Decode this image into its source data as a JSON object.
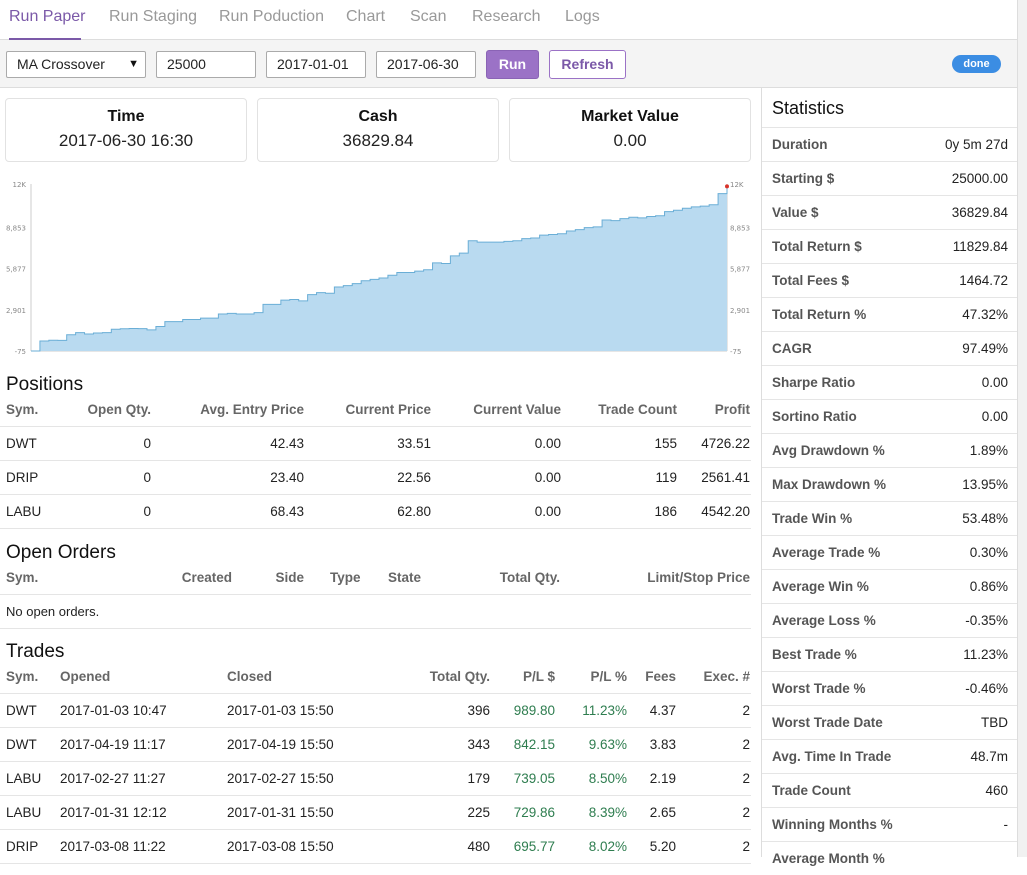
{
  "tabs": [
    "Run Paper",
    "Run Staging",
    "Run Poduction",
    "Chart",
    "Scan",
    "Research",
    "Logs"
  ],
  "toolbar": {
    "strategy": "MA Crossover",
    "capital": "25000",
    "start_date": "2017-01-01",
    "end_date": "2017-06-30",
    "run_label": "Run",
    "refresh_label": "Refresh",
    "status": "done"
  },
  "cards": [
    {
      "label": "Time",
      "value": "2017-06-30 16:30"
    },
    {
      "label": "Cash",
      "value": "36829.84"
    },
    {
      "label": "Market Value",
      "value": "0.00"
    }
  ],
  "chart_data": {
    "type": "area",
    "title": "",
    "y_ticks": [
      "12K",
      "8,853",
      "5,877",
      "2,901",
      "-75"
    ],
    "ylim": [
      -75,
      12000
    ],
    "color": "#b9daf0",
    "line_color": "#6aaed6",
    "values": [
      -75,
      650,
      700,
      690,
      1100,
      1250,
      1150,
      1230,
      1250,
      1500,
      1530,
      1550,
      1540,
      1450,
      1700,
      2050,
      2050,
      2200,
      2200,
      2300,
      2300,
      2600,
      2650,
      2600,
      2600,
      2700,
      3300,
      3300,
      3600,
      3650,
      3550,
      4000,
      4150,
      4100,
      4550,
      4650,
      4800,
      5000,
      5100,
      5200,
      5400,
      5600,
      5600,
      5700,
      5800,
      6300,
      6250,
      6800,
      7000,
      7900,
      7800,
      7800,
      7800,
      7850,
      7900,
      8050,
      8100,
      8300,
      8350,
      8400,
      8600,
      8700,
      8850,
      8900,
      9400,
      9350,
      9500,
      9600,
      9550,
      9650,
      9700,
      10000,
      10100,
      10250,
      10350,
      10400,
      10500,
      11300,
      11829
    ]
  },
  "positions": {
    "title": "Positions",
    "headers": [
      "Sym.",
      "Open Qty.",
      "Avg. Entry Price",
      "Current Price",
      "Current Value",
      "Trade Count",
      "Profit"
    ],
    "rows": [
      [
        "DWT",
        "0",
        "42.43",
        "33.51",
        "0.00",
        "155",
        "4726.22"
      ],
      [
        "DRIP",
        "0",
        "23.40",
        "22.56",
        "0.00",
        "119",
        "2561.41"
      ],
      [
        "LABU",
        "0",
        "68.43",
        "62.80",
        "0.00",
        "186",
        "4542.20"
      ]
    ]
  },
  "orders": {
    "title": "Open Orders",
    "headers": [
      "Sym.",
      "Created",
      "Side",
      "Type",
      "State",
      "Total Qty.",
      "Limit/Stop Price"
    ],
    "empty": "No open orders."
  },
  "trades": {
    "title": "Trades",
    "headers": [
      "Sym.",
      "Opened",
      "Closed",
      "Total Qty.",
      "P/L $",
      "P/L %",
      "Fees",
      "Exec. #"
    ],
    "rows": [
      [
        "DWT",
        "2017-01-03 10:47",
        "2017-01-03 15:50",
        "396",
        "989.80",
        "11.23%",
        "4.37",
        "2"
      ],
      [
        "DWT",
        "2017-04-19 11:17",
        "2017-04-19 15:50",
        "343",
        "842.15",
        "9.63%",
        "3.83",
        "2"
      ],
      [
        "LABU",
        "2017-02-27 11:27",
        "2017-02-27 15:50",
        "179",
        "739.05",
        "8.50%",
        "2.19",
        "2"
      ],
      [
        "LABU",
        "2017-01-31 12:12",
        "2017-01-31 15:50",
        "225",
        "729.86",
        "8.39%",
        "2.65",
        "2"
      ],
      [
        "DRIP",
        "2017-03-08 11:22",
        "2017-03-08 15:50",
        "480",
        "695.77",
        "8.02%",
        "5.20",
        "2"
      ]
    ]
  },
  "statistics": {
    "title": "Statistics",
    "rows": [
      {
        "k": "Duration",
        "v": "0y 5m 27d",
        "c": ""
      },
      {
        "k": "Starting $",
        "v": "25000.00",
        "c": ""
      },
      {
        "k": "Value $",
        "v": "36829.84",
        "c": ""
      },
      {
        "k": "Total Return $",
        "v": "11829.84",
        "c": "pos"
      },
      {
        "k": "Total Fees $",
        "v": "1464.72",
        "c": ""
      },
      {
        "k": "Total Return %",
        "v": "47.32%",
        "c": "pos"
      },
      {
        "k": "CAGR",
        "v": "97.49%",
        "c": ""
      },
      {
        "k": "Sharpe Ratio",
        "v": "0.00",
        "c": ""
      },
      {
        "k": "Sortino Ratio",
        "v": "0.00",
        "c": ""
      },
      {
        "k": "Avg Drawdown %",
        "v": "1.89%",
        "c": ""
      },
      {
        "k": "Max Drawdown %",
        "v": "13.95%",
        "c": ""
      },
      {
        "k": "Trade Win %",
        "v": "53.48%",
        "c": ""
      },
      {
        "k": "Average Trade %",
        "v": "0.30%",
        "c": "pos"
      },
      {
        "k": "Average Win %",
        "v": "0.86%",
        "c": "pos"
      },
      {
        "k": "Average Loss %",
        "v": "-0.35%",
        "c": "neg"
      },
      {
        "k": "Best Trade %",
        "v": "11.23%",
        "c": "pos"
      },
      {
        "k": "Worst Trade %",
        "v": "-0.46%",
        "c": "neg"
      },
      {
        "k": "Worst Trade Date",
        "v": "TBD",
        "c": ""
      },
      {
        "k": "Avg. Time In Trade",
        "v": "48.7m",
        "c": ""
      },
      {
        "k": "Trade Count",
        "v": "460",
        "c": ""
      },
      {
        "k": "Winning Months %",
        "v": "-",
        "c": ""
      },
      {
        "k": "Average Month %",
        "v": "",
        "c": ""
      }
    ]
  }
}
